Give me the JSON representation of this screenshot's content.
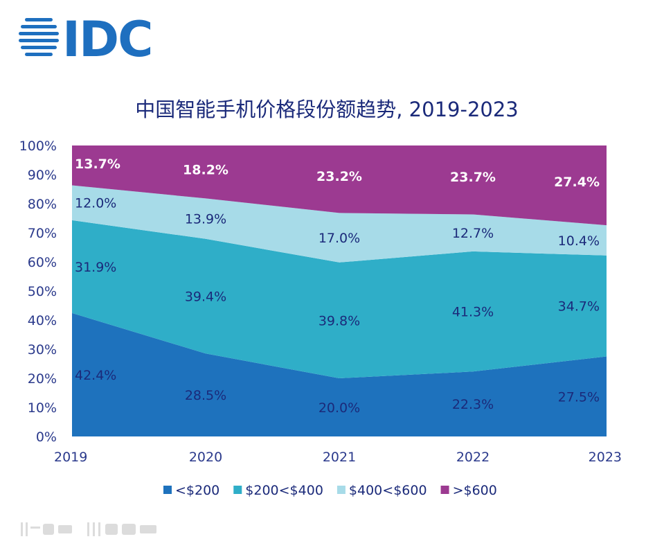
{
  "logo": {
    "text": "IDC",
    "color": "#1e6fbf"
  },
  "chart_data": {
    "type": "area",
    "stacked": true,
    "title": "中国智能手机价格段份额趋势, 2019-2023",
    "x": [
      "2019",
      "2020",
      "2021",
      "2022",
      "2023"
    ],
    "ylim": [
      0,
      100
    ],
    "yticks": [
      "0%",
      "10%",
      "20%",
      "30%",
      "40%",
      "50%",
      "60%",
      "70%",
      "80%",
      "90%",
      "100%"
    ],
    "grid": false,
    "legend_position": "bottom",
    "series": [
      {
        "name": "<$200",
        "color": "#1e72bd",
        "values": [
          42.4,
          28.5,
          20.0,
          22.3,
          27.5
        ],
        "labels": [
          "42.4%",
          "28.5%",
          "20.0%",
          "22.3%",
          "27.5%"
        ]
      },
      {
        "name": "$200<$400",
        "color": "#2faec8",
        "values": [
          31.9,
          39.4,
          39.8,
          41.3,
          34.7
        ],
        "labels": [
          "31.9%",
          "39.4%",
          "39.8%",
          "41.3%",
          "34.7%"
        ]
      },
      {
        "name": "$400<$600",
        "color": "#a7dbe8",
        "values": [
          12.0,
          13.9,
          17.0,
          12.7,
          10.4
        ],
        "labels": [
          "12.0%",
          "13.9%",
          "17.0%",
          "12.7%",
          "10.4%"
        ]
      },
      {
        "name": ">$600",
        "color": "#9c3a91",
        "values": [
          13.7,
          18.2,
          23.2,
          23.7,
          27.4
        ],
        "labels": [
          "13.7%",
          "18.2%",
          "23.2%",
          "23.7%",
          "27.4%"
        ]
      }
    ]
  }
}
